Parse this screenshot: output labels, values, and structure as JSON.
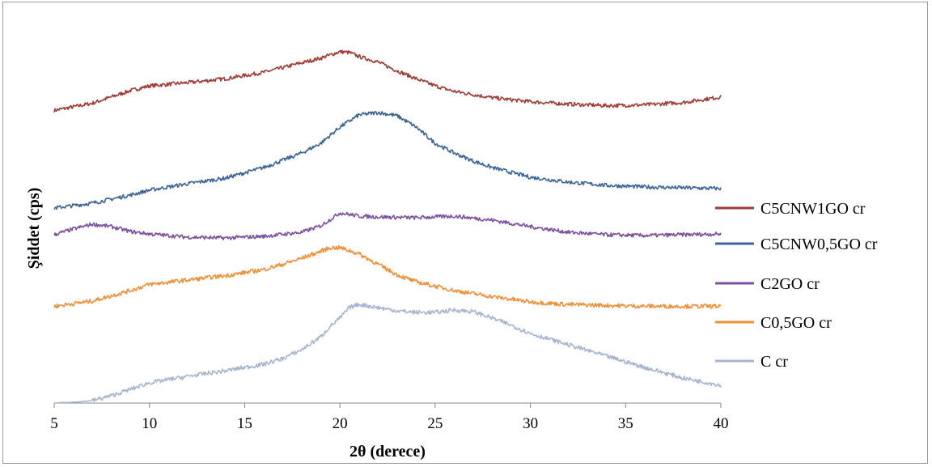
{
  "chart_data": {
    "type": "line",
    "title": "",
    "xlabel": "2θ (derece)",
    "ylabel": "Şiddet (cps)",
    "xlim": [
      5,
      40
    ],
    "xticks": [
      5,
      10,
      15,
      20,
      25,
      30,
      35,
      40
    ],
    "yticks_shown": false,
    "grid": false,
    "legend_position": "right",
    "series": [
      {
        "name": "C5CNW1GO cr",
        "color": "#a23b34",
        "x": [
          5,
          7,
          9,
          10,
          12,
          14,
          16,
          18,
          19,
          20,
          20.5,
          21,
          22,
          23,
          24,
          25,
          26,
          27,
          28,
          30,
          32,
          34,
          36,
          38,
          40
        ],
        "y": [
          22,
          31,
          47,
          53,
          57,
          62,
          70,
          82,
          88,
          96,
          95,
          90,
          83,
          72,
          62,
          53,
          46,
          42,
          38,
          33,
          30,
          28,
          29,
          32,
          39
        ]
      },
      {
        "name": "C5CNW0,5GO cr",
        "color": "#3c6498",
        "x": [
          5,
          7,
          9,
          10,
          12,
          14,
          16,
          18,
          19,
          20,
          21,
          22,
          23,
          24,
          25,
          26,
          27,
          28,
          30,
          32,
          34,
          36,
          38,
          40
        ],
        "y": [
          10,
          16,
          26,
          32,
          40,
          47,
          60,
          78,
          90,
          110,
          125,
          128,
          124,
          110,
          90,
          78,
          68,
          60,
          48,
          42,
          38,
          36,
          35,
          34
        ]
      },
      {
        "name": "C2GO cr",
        "color": "#7c52a0",
        "x": [
          5,
          6,
          7,
          8,
          9,
          10,
          12,
          14,
          16,
          18,
          19,
          20,
          21,
          22,
          24,
          26,
          28,
          30,
          32,
          34,
          36,
          38,
          40
        ],
        "y": [
          60,
          67,
          73,
          70,
          64,
          61,
          57,
          56,
          58,
          63,
          71,
          87,
          83,
          82,
          81,
          83,
          78,
          70,
          63,
          60,
          59,
          60,
          61
        ]
      },
      {
        "name": "C0,5GO cr",
        "color": "#f0903a",
        "x": [
          5,
          7,
          9,
          10,
          12,
          14,
          16,
          17,
          18,
          19,
          19.5,
          20,
          21,
          22,
          23,
          24,
          26,
          28,
          30,
          32,
          34,
          36,
          38,
          40
        ],
        "y": [
          20,
          26,
          38,
          45,
          50,
          55,
          62,
          68,
          75,
          83,
          87,
          87,
          80,
          68,
          56,
          48,
          38,
          31,
          25,
          22,
          21,
          20,
          20,
          20
        ]
      },
      {
        "name": "C cr",
        "color": "#a7b5cf",
        "x": [
          5,
          6,
          7,
          8,
          9,
          10,
          12,
          14,
          16,
          17,
          18,
          19,
          19.5,
          20,
          20.5,
          21,
          22,
          23,
          24,
          25,
          26,
          27,
          28,
          29,
          30,
          32,
          34,
          36,
          38,
          40
        ],
        "y": [
          0,
          1,
          3,
          9,
          17,
          25,
          33,
          40,
          48,
          55,
          66,
          82,
          95,
          105,
          118,
          122,
          118,
          114,
          112,
          112,
          115,
          113,
          105,
          96,
          86,
          72,
          58,
          44,
          31,
          22
        ]
      }
    ]
  }
}
